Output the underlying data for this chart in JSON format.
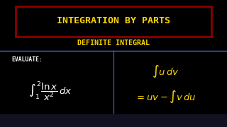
{
  "bg_color": "#000000",
  "title_text": "INTEGRATION BY PARTS",
  "title_color": "#FFD700",
  "title_box_edge": "#8B0000",
  "subtitle_text": "DEFINITE INTEGRAL",
  "subtitle_color": "#FFD700",
  "evaluate_label": "EVALUATE:",
  "evaluate_color": "#FFFFFF",
  "integral_left_color": "#FFFFFF",
  "integral_right_color": "#FFD700",
  "divider_color": "#4169E1",
  "bottom_bar_color": "#1a1a2e"
}
